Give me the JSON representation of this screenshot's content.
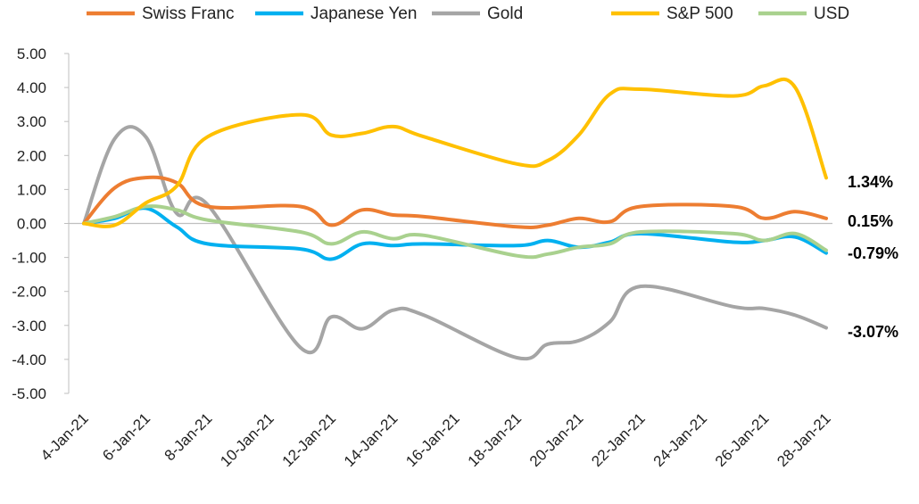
{
  "chart_data": {
    "type": "line",
    "title": "",
    "xlabel": "",
    "ylabel": "",
    "ylim": [
      -5,
      5
    ],
    "yticks": [
      "5.00",
      "4.00",
      "3.00",
      "2.00",
      "1.00",
      "0.00",
      "-1.00",
      "-2.00",
      "-3.00",
      "-4.00",
      "-5.00"
    ],
    "xticks": [
      "4-Jan-21",
      "6-Jan-21",
      "8-Jan-21",
      "10-Jan-21",
      "12-Jan-21",
      "14-Jan-21",
      "16-Jan-21",
      "18-Jan-21",
      "20-Jan-21",
      "22-Jan-21",
      "24-Jan-21",
      "26-Jan-21",
      "28-Jan-21"
    ],
    "x": [
      4,
      5,
      6,
      7,
      8,
      11,
      12,
      13,
      14,
      15,
      18,
      19,
      20,
      21,
      22,
      25,
      26,
      27,
      28
    ],
    "legend_position": "top",
    "series": [
      {
        "name": "Swiss Franc",
        "color": "#ED7D31",
        "values": [
          0.0,
          1.05,
          1.35,
          1.2,
          0.5,
          0.5,
          -0.05,
          0.4,
          0.25,
          0.2,
          -0.1,
          -0.05,
          0.15,
          0.05,
          0.5,
          0.5,
          0.15,
          0.35,
          0.15
        ]
      },
      {
        "name": "Japanese Yen",
        "color": "#00B0F0",
        "values": [
          0.0,
          0.15,
          0.45,
          -0.1,
          -0.6,
          -0.75,
          -1.05,
          -0.6,
          -0.65,
          -0.6,
          -0.65,
          -0.5,
          -0.7,
          -0.55,
          -0.3,
          -0.55,
          -0.5,
          -0.4,
          -0.87
        ]
      },
      {
        "name": "Gold",
        "color": "#A5A5A5",
        "values": [
          0.0,
          2.5,
          2.55,
          0.3,
          0.55,
          -3.65,
          -2.75,
          -3.1,
          -2.55,
          -2.7,
          -3.95,
          -3.55,
          -3.45,
          -2.9,
          -1.85,
          -2.45,
          -2.5,
          -2.7,
          -3.07
        ]
      },
      {
        "name": "S&P 500",
        "color": "#FFC000",
        "values": [
          0.0,
          -0.05,
          0.6,
          1.1,
          2.55,
          3.2,
          2.6,
          2.65,
          2.85,
          2.55,
          1.75,
          1.85,
          2.6,
          3.8,
          3.95,
          3.75,
          4.05,
          4.0,
          1.34
        ]
      },
      {
        "name": "USD",
        "color": "#A9D18E",
        "values": [
          0.0,
          0.2,
          0.5,
          0.4,
          0.1,
          -0.25,
          -0.6,
          -0.25,
          -0.45,
          -0.35,
          -0.95,
          -0.9,
          -0.7,
          -0.6,
          -0.25,
          -0.3,
          -0.5,
          -0.3,
          -0.79
        ]
      }
    ],
    "end_labels": [
      {
        "series": "S&P 500",
        "text": "1.34%"
      },
      {
        "series": "Swiss Franc",
        "text": "0.15%"
      },
      {
        "series": "USD",
        "text": "-0.79%"
      },
      {
        "series": "Gold",
        "text": "-3.07%"
      }
    ]
  }
}
